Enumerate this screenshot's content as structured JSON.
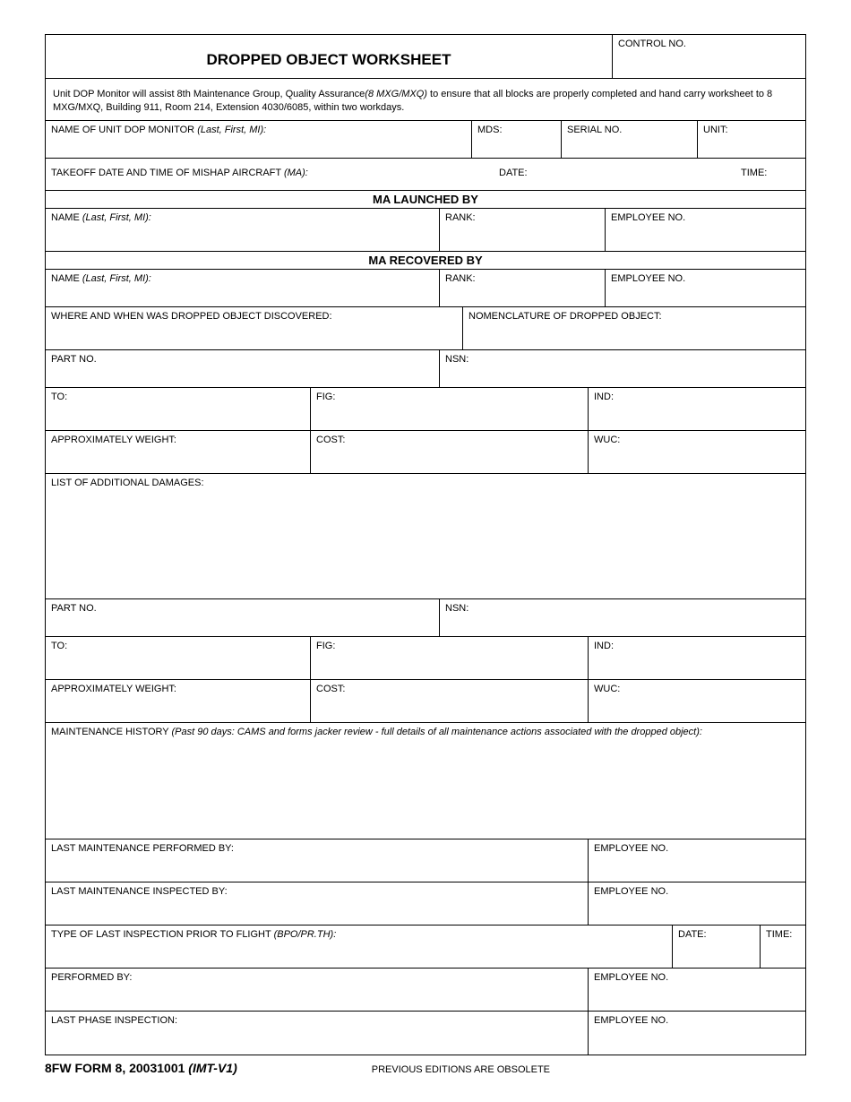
{
  "title": "DROPPED OBJECT WORKSHEET",
  "control_no": "CONTROL NO.",
  "instruction_part1": "Unit DOP Monitor will assist 8th Maintenance Group, Quality Assurance",
  "instruction_italic": "(8 MXG/MXQ)",
  "instruction_part2": " to ensure that all blocks are properly completed and hand carry worksheet to 8 MXG/MXQ, Building 911, Room 214, Extension 4030/6085, within two workdays.",
  "labels": {
    "name_dop_monitor": "NAME OF UNIT DOP MONITOR ",
    "name_dop_monitor_italic": "(Last, First, MI):",
    "mds": "MDS:",
    "serial_no": "SERIAL NO.",
    "unit": "UNIT:",
    "takeoff": "TAKEOFF DATE AND TIME OF MISHAP AIRCRAFT ",
    "takeoff_italic": "(MA):",
    "date": "DATE:",
    "time": "TIME:",
    "ma_launched": "MA LAUNCHED BY",
    "ma_recovered": "MA RECOVERED BY",
    "name": "NAME ",
    "name_italic": "(Last, First, MI):",
    "rank": "RANK:",
    "employee_no": "EMPLOYEE NO.",
    "where_when": "WHERE AND WHEN WAS DROPPED OBJECT DISCOVERED:",
    "nomenclature": "NOMENCLATURE OF DROPPED OBJECT:",
    "part_no": "PART NO.",
    "nsn": "NSN:",
    "to": "TO:",
    "fig": "FIG:",
    "ind": "IND:",
    "approx_weight": "APPROXIMATELY WEIGHT:",
    "cost": "COST:",
    "wuc": "WUC:",
    "list_damages": "LIST OF ADDITIONAL DAMAGES:",
    "maint_history": "MAINTENANCE HISTORY ",
    "maint_history_italic": "(Past 90 days:  CAMS and forms jacker review - full details of all maintenance actions associated with the dropped object):",
    "last_maint_performed": "LAST MAINTENANCE PERFORMED BY:",
    "last_maint_inspected": "LAST MAINTENANCE INSPECTED BY:",
    "type_last_inspection": "TYPE OF LAST INSPECTION PRIOR TO FLIGHT ",
    "type_last_inspection_italic": "(BPO/PR.TH):",
    "performed_by": "PERFORMED BY:",
    "last_phase": "LAST PHASE INSPECTION:"
  },
  "footer": {
    "form_id": "8FW FORM 8, 20031001 ",
    "form_id_italic": "(IMT-V1)",
    "note": "PREVIOUS EDITIONS ARE OBSOLETE"
  }
}
